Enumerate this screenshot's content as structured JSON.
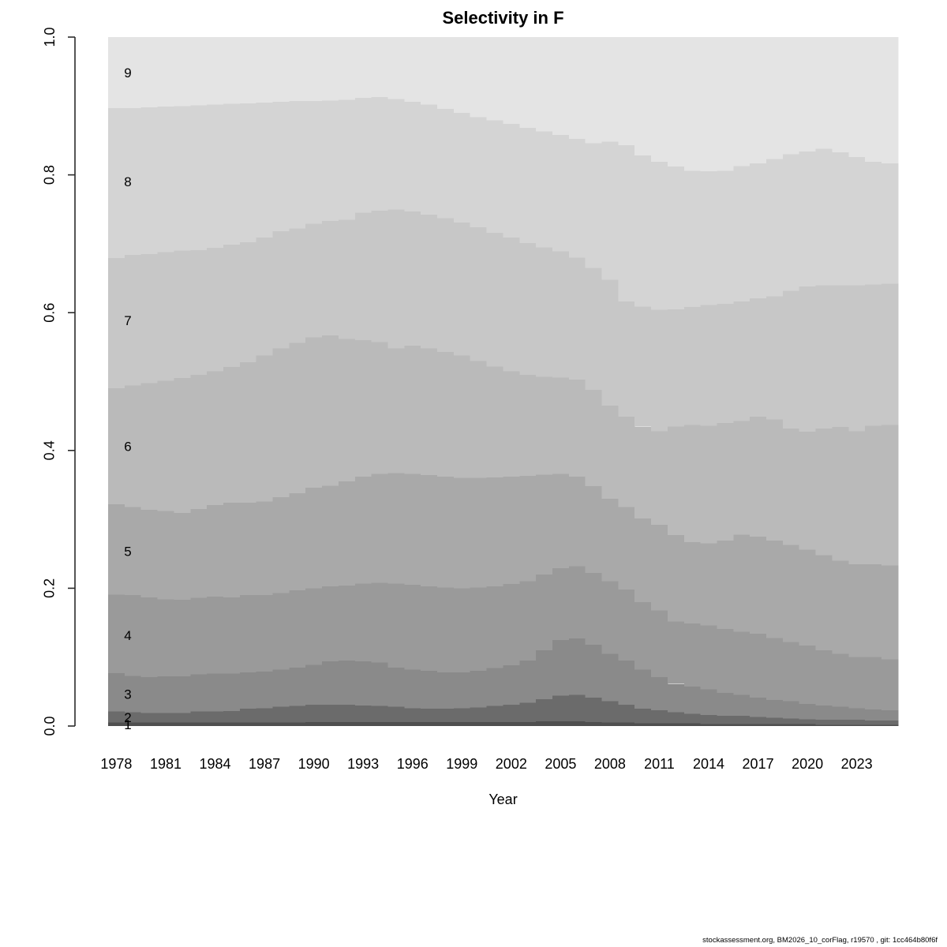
{
  "title": "Selectivity in F",
  "footer": "stockassessment.org, BM2026_10_corFlag, r19570 , git: 1cc464b80f6f",
  "chart_data": {
    "type": "area",
    "stacked": true,
    "title": "Selectivity in F",
    "xlabel": "Year",
    "ylabel": "",
    "ylim": [
      0.0,
      1.0
    ],
    "grid": false,
    "legend_position": "labels-inside-left",
    "y_ticks": [
      "0.0",
      "0.2",
      "0.4",
      "0.6",
      "0.8",
      "1.0"
    ],
    "y_tick_values": [
      0.0,
      0.2,
      0.4,
      0.6,
      0.8,
      1.0
    ],
    "x_tick_labels": [
      "1978",
      "1981",
      "1984",
      "1987",
      "1990",
      "1993",
      "1996",
      "1999",
      "2002",
      "2005",
      "2008",
      "2011",
      "2014",
      "2017",
      "2020",
      "2023"
    ],
    "x_tick_years": [
      1978,
      1981,
      1984,
      1987,
      1990,
      1993,
      1996,
      1999,
      2002,
      2005,
      2008,
      2011,
      2014,
      2017,
      2020,
      2023
    ],
    "x": [
      1978,
      1979,
      1980,
      1981,
      1982,
      1983,
      1984,
      1985,
      1986,
      1987,
      1988,
      1989,
      1990,
      1991,
      1992,
      1993,
      1994,
      1995,
      1996,
      1997,
      1998,
      1999,
      2000,
      2001,
      2002,
      2003,
      2004,
      2005,
      2006,
      2007,
      2008,
      2009,
      2010,
      2011,
      2012,
      2013,
      2014,
      2015,
      2016,
      2017,
      2018,
      2019,
      2020,
      2021,
      2022,
      2023,
      2024,
      2025
    ],
    "age_labels": [
      "1",
      "2",
      "3",
      "4",
      "5",
      "6",
      "7",
      "8",
      "9"
    ],
    "colors": [
      "#4F4F4F",
      "#6B6B6B",
      "#8A8A8A",
      "#9A9A9A",
      "#A9A9A9",
      "#BABABA",
      "#C7C7C7",
      "#D4D4D4",
      "#E4E4E4"
    ],
    "note": "cumulative_upper_bounds[i] = cumulative proportion at top of ages 1..8 for year x[i]; age 9 fills to 1.0",
    "cumulative_upper_bounds": [
      [
        0.005,
        0.021,
        0.077,
        0.191,
        0.322,
        0.49,
        0.679,
        0.897
      ],
      [
        0.005,
        0.02,
        0.073,
        0.19,
        0.318,
        0.494,
        0.684,
        0.897
      ],
      [
        0.005,
        0.019,
        0.071,
        0.187,
        0.314,
        0.498,
        0.685,
        0.898
      ],
      [
        0.005,
        0.019,
        0.072,
        0.184,
        0.312,
        0.501,
        0.688,
        0.899
      ],
      [
        0.005,
        0.019,
        0.072,
        0.183,
        0.309,
        0.505,
        0.69,
        0.9
      ],
      [
        0.005,
        0.021,
        0.075,
        0.186,
        0.315,
        0.51,
        0.691,
        0.901
      ],
      [
        0.005,
        0.021,
        0.076,
        0.188,
        0.321,
        0.515,
        0.694,
        0.902
      ],
      [
        0.005,
        0.022,
        0.076,
        0.187,
        0.324,
        0.521,
        0.699,
        0.903
      ],
      [
        0.005,
        0.025,
        0.078,
        0.19,
        0.324,
        0.528,
        0.702,
        0.904
      ],
      [
        0.005,
        0.026,
        0.079,
        0.19,
        0.326,
        0.538,
        0.709,
        0.905
      ],
      [
        0.005,
        0.028,
        0.082,
        0.193,
        0.332,
        0.548,
        0.718,
        0.906
      ],
      [
        0.005,
        0.029,
        0.085,
        0.197,
        0.338,
        0.556,
        0.722,
        0.907
      ],
      [
        0.006,
        0.031,
        0.089,
        0.2,
        0.346,
        0.564,
        0.729,
        0.907
      ],
      [
        0.006,
        0.031,
        0.094,
        0.203,
        0.349,
        0.567,
        0.733,
        0.908
      ],
      [
        0.006,
        0.031,
        0.095,
        0.204,
        0.355,
        0.562,
        0.735,
        0.909
      ],
      [
        0.006,
        0.03,
        0.094,
        0.207,
        0.362,
        0.56,
        0.745,
        0.912
      ],
      [
        0.006,
        0.029,
        0.092,
        0.208,
        0.366,
        0.557,
        0.748,
        0.913
      ],
      [
        0.006,
        0.028,
        0.085,
        0.207,
        0.367,
        0.548,
        0.75,
        0.91
      ],
      [
        0.006,
        0.026,
        0.082,
        0.205,
        0.366,
        0.552,
        0.747,
        0.906
      ],
      [
        0.006,
        0.025,
        0.08,
        0.203,
        0.364,
        0.548,
        0.742,
        0.902
      ],
      [
        0.006,
        0.025,
        0.078,
        0.201,
        0.362,
        0.543,
        0.737,
        0.896
      ],
      [
        0.006,
        0.026,
        0.078,
        0.2,
        0.36,
        0.538,
        0.731,
        0.89
      ],
      [
        0.006,
        0.027,
        0.08,
        0.201,
        0.36,
        0.53,
        0.724,
        0.884
      ],
      [
        0.006,
        0.029,
        0.084,
        0.203,
        0.361,
        0.522,
        0.716,
        0.879
      ],
      [
        0.006,
        0.031,
        0.088,
        0.206,
        0.362,
        0.515,
        0.709,
        0.874
      ],
      [
        0.006,
        0.034,
        0.095,
        0.21,
        0.363,
        0.51,
        0.701,
        0.868
      ],
      [
        0.007,
        0.039,
        0.11,
        0.22,
        0.365,
        0.507,
        0.695,
        0.863
      ],
      [
        0.007,
        0.044,
        0.125,
        0.229,
        0.366,
        0.506,
        0.689,
        0.858
      ],
      [
        0.007,
        0.045,
        0.127,
        0.232,
        0.362,
        0.503,
        0.68,
        0.852
      ],
      [
        0.006,
        0.041,
        0.118,
        0.222,
        0.348,
        0.488,
        0.665,
        0.846
      ],
      [
        0.005,
        0.036,
        0.105,
        0.21,
        0.33,
        0.465,
        0.648,
        0.848
      ],
      [
        0.005,
        0.031,
        0.095,
        0.198,
        0.318,
        0.449,
        0.616,
        0.843
      ],
      [
        0.004,
        0.025,
        0.082,
        0.18,
        0.301,
        0.435,
        0.609,
        0.828
      ],
      [
        0.004,
        0.023,
        0.071,
        0.168,
        0.292,
        0.428,
        0.604,
        0.819
      ],
      [
        0.004,
        0.02,
        0.061,
        0.152,
        0.277,
        0.435,
        0.605,
        0.812
      ],
      [
        0.004,
        0.018,
        0.057,
        0.149,
        0.267,
        0.437,
        0.608,
        0.806
      ],
      [
        0.003,
        0.016,
        0.053,
        0.146,
        0.265,
        0.436,
        0.611,
        0.805
      ],
      [
        0.003,
        0.015,
        0.048,
        0.141,
        0.269,
        0.44,
        0.613,
        0.806
      ],
      [
        0.003,
        0.015,
        0.045,
        0.137,
        0.278,
        0.443,
        0.616,
        0.813
      ],
      [
        0.003,
        0.013,
        0.041,
        0.134,
        0.275,
        0.449,
        0.621,
        0.817
      ],
      [
        0.003,
        0.012,
        0.038,
        0.128,
        0.269,
        0.445,
        0.624,
        0.823
      ],
      [
        0.003,
        0.011,
        0.036,
        0.122,
        0.263,
        0.432,
        0.632,
        0.83
      ],
      [
        0.003,
        0.01,
        0.032,
        0.117,
        0.256,
        0.427,
        0.638,
        0.834
      ],
      [
        0.002,
        0.009,
        0.03,
        0.11,
        0.248,
        0.432,
        0.64,
        0.838
      ],
      [
        0.002,
        0.009,
        0.028,
        0.105,
        0.24,
        0.434,
        0.64,
        0.833
      ],
      [
        0.002,
        0.009,
        0.026,
        0.1,
        0.235,
        0.428,
        0.64,
        0.826
      ],
      [
        0.002,
        0.008,
        0.024,
        0.1,
        0.235,
        0.436,
        0.641,
        0.819
      ],
      [
        0.002,
        0.008,
        0.023,
        0.097,
        0.233,
        0.437,
        0.642,
        0.817
      ]
    ]
  }
}
